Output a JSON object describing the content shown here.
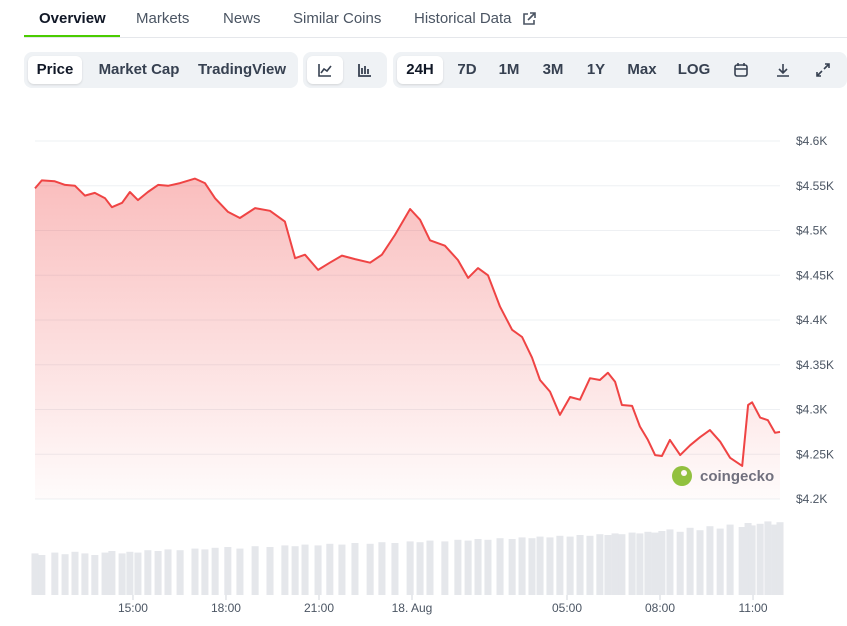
{
  "tabs": [
    "Overview",
    "Markets",
    "News",
    "Similar Coins",
    "Historical Data"
  ],
  "views": [
    "Price",
    "Market Cap",
    "TradingView"
  ],
  "ranges": [
    "24H",
    "7D",
    "1M",
    "3M",
    "1Y",
    "Max",
    "LOG"
  ],
  "watermark": "coingecko",
  "chart_data": {
    "type": "line",
    "x": [
      11.84,
      12.06,
      12.48,
      12.81,
      13.13,
      13.45,
      13.77,
      14.1,
      14.32,
      14.65,
      14.9,
      15.16,
      15.48,
      15.81,
      16.13,
      16.52,
      17.0,
      17.32,
      17.65,
      18.06,
      18.45,
      18.94,
      19.42,
      19.9,
      20.23,
      20.55,
      20.97,
      21.35,
      21.74,
      22.16,
      22.65,
      23.03,
      23.45,
      23.94,
      24.26,
      24.58,
      25.06,
      25.48,
      25.81,
      26.13,
      26.45,
      26.84,
      27.23,
      27.55,
      27.87,
      28.13,
      28.45,
      28.77,
      29.1,
      29.42,
      29.74,
      30.06,
      30.32,
      30.55,
      30.77,
      31.1,
      31.35,
      31.61,
      31.84,
      32.06,
      32.32,
      32.65,
      32.97,
      33.29,
      33.61,
      33.94,
      34.26,
      34.65,
      34.84,
      34.97,
      35.23,
      35.48,
      35.71,
      35.87
    ],
    "series": [
      {
        "name": "Price",
        "color": "#ef4444",
        "values": [
          4547,
          4556,
          4555,
          4551,
          4550,
          4539,
          4542,
          4536,
          4526,
          4531,
          4543,
          4534,
          4543,
          4551,
          4550,
          4553,
          4558,
          4553,
          4536,
          4521,
          4514,
          4525,
          4522,
          4510,
          4469,
          4473,
          4456,
          4464,
          4472,
          4468,
          4464,
          4473,
          4495,
          4524,
          4512,
          4489,
          4483,
          4467,
          4447,
          4458,
          4450,
          4415,
          4389,
          4381,
          4358,
          4333,
          4320,
          4294,
          4314,
          4311,
          4335,
          4333,
          4341,
          4331,
          4305,
          4304,
          4281,
          4266,
          4249,
          4248,
          4266,
          4249,
          4260,
          4269,
          4277,
          4264,
          4246,
          4237,
          4305,
          4308,
          4291,
          4288,
          4274,
          4275
        ]
      },
      {
        "name": "Volume",
        "color": "#e5e7eb",
        "axis": "y2",
        "values": [
          52,
          50,
          53,
          51,
          54,
          52,
          50,
          53,
          55,
          52,
          54,
          53,
          56,
          55,
          57,
          56,
          58,
          57,
          59,
          60,
          58,
          61,
          60,
          62,
          61,
          63,
          62,
          64,
          63,
          65,
          64,
          66,
          65,
          67,
          66,
          68,
          67,
          69,
          68,
          70,
          69,
          71,
          70,
          72,
          71,
          73,
          72,
          74,
          73,
          75,
          74,
          76,
          75,
          77,
          76,
          78,
          77,
          79,
          78,
          80,
          82,
          79,
          84,
          81,
          86,
          83,
          88,
          85,
          90,
          87,
          89,
          92,
          88,
          91
        ]
      }
    ],
    "xlim": [
      11.84,
      35.87
    ],
    "xticks": [
      {
        "value": 15,
        "label": "15:00"
      },
      {
        "value": 18,
        "label": "18:00"
      },
      {
        "value": 21,
        "label": "21:00"
      },
      {
        "value": 24,
        "label": "18. Aug"
      },
      {
        "value": 29,
        "label": "05:00"
      },
      {
        "value": 32,
        "label": "08:00"
      },
      {
        "value": 35,
        "label": "11:00"
      }
    ],
    "ylim": [
      4200,
      4600
    ],
    "yticks": [
      {
        "value": 4200,
        "label": "$4.2K"
      },
      {
        "value": 4250,
        "label": "$4.25K"
      },
      {
        "value": 4300,
        "label": "$4.3K"
      },
      {
        "value": 4350,
        "label": "$4.35K"
      },
      {
        "value": 4400,
        "label": "$4.4K"
      },
      {
        "value": 4450,
        "label": "$4.45K"
      },
      {
        "value": 4500,
        "label": "$4.5K"
      },
      {
        "value": 4550,
        "label": "$4.55K"
      },
      {
        "value": 4600,
        "label": "$4.6K"
      }
    ],
    "y2lim": [
      0,
      100
    ],
    "grid": true
  }
}
